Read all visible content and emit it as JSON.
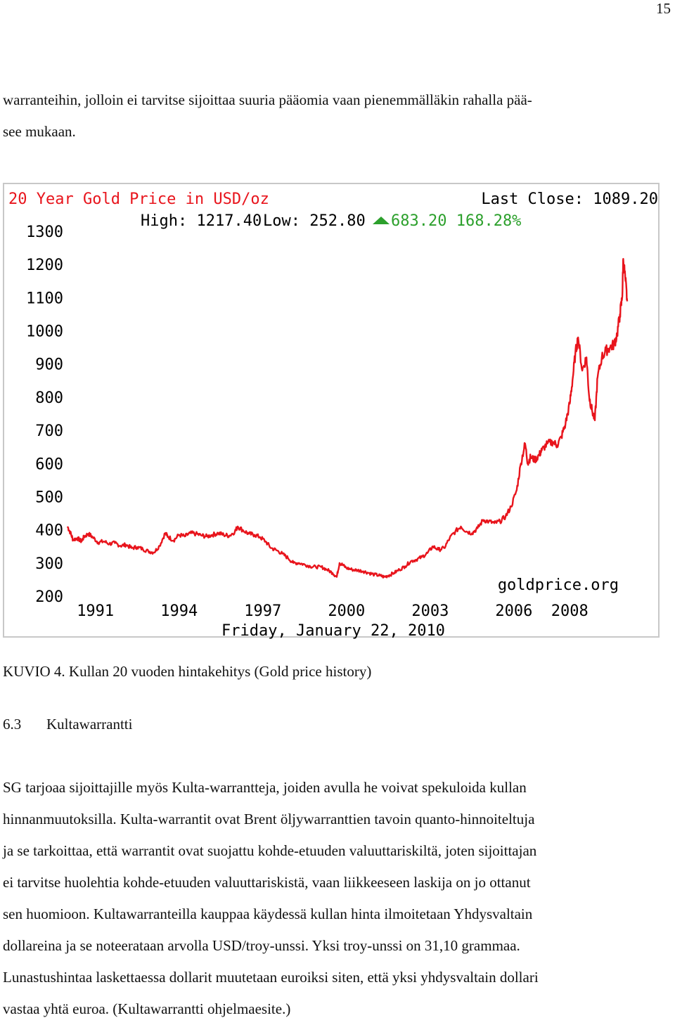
{
  "page_number": "15",
  "intro": {
    "line1": "warranteihin, jolloin ei tarvitse sijoittaa suuria pääomia vaan pienemmälläkin rahalla pää-",
    "line2": "see mukaan."
  },
  "caption": "KUVIO 4. Kullan 20 vuoden hintakehitys (Gold price history)",
  "section": {
    "number": "6.3",
    "title": "Kultawarrantti"
  },
  "body_lines": [
    "SG tarjoaa sijoittajille myös Kulta-warrantteja, joiden avulla he voivat spekuloida kullan",
    "hinnanmuutoksilla. Kulta-warrantit ovat Brent öljywarranttien tavoin quanto-hinnoiteltuja",
    "ja se tarkoittaa, että warrantit ovat suojattu kohde-etuuden valuuttariskiltä, joten sijoittajan",
    "ei tarvitse huolehtia kohde-etuuden valuuttariskistä, vaan liikkeeseen laskija on jo ottanut",
    "sen huomioon. Kultawarranteilla kauppaa käydessä kullan hinta ilmoitetaan Yhdysvaltain",
    "dollareina ja se noteerataan arvolla USD/troy-unssi. Yksi troy-unssi on 31,10 grammaa.",
    "Lunastushintaa laskettaessa dollarit muutetaan euroiksi siten, että yksi yhdysvaltain dollari",
    "vastaa yhtä euroa. (Kultawarrantti ohjelmaesite.)"
  ],
  "chart_data": {
    "type": "line",
    "title": "20 Year Gold Price in USD/oz",
    "last_close_label": "Last Close: 1089.20",
    "high_label": "High: 1217.40",
    "low_label": "Low: 252.80",
    "change_label": "683.20 168.28%",
    "date_label": "Friday, January 22, 2010",
    "source_label": "goldprice.org",
    "y_ticks": [
      "1300",
      "1200",
      "1100",
      "1000",
      "900",
      "800",
      "700",
      "600",
      "500",
      "400",
      "300",
      "200"
    ],
    "x_ticks": [
      {
        "label": "1991",
        "year": 1991.0
      },
      {
        "label": "1994",
        "year": 1994.0
      },
      {
        "label": "1997",
        "year": 1997.0
      },
      {
        "label": "2000",
        "year": 2000.0
      },
      {
        "label": "2003",
        "year": 2003.0
      },
      {
        "label": "2006",
        "year": 2006.0
      },
      {
        "label": "2008",
        "year": 2008.0
      }
    ],
    "ylim": [
      200,
      1300
    ],
    "xlim": [
      1990.0,
      2010.06
    ],
    "series_color": "#e8141c",
    "title_color": "#e8141c",
    "change_color": "#2ca02c",
    "series": [
      {
        "name": "Gold price",
        "x": [
          1990.0,
          1990.1,
          1990.2,
          1990.35,
          1990.5,
          1990.6,
          1990.75,
          1990.9,
          1991.1,
          1991.3,
          1991.5,
          1991.7,
          1991.9,
          1992.1,
          1992.3,
          1992.5,
          1992.7,
          1992.9,
          1993.1,
          1993.3,
          1993.5,
          1993.6,
          1993.8,
          1994.0,
          1994.2,
          1994.4,
          1994.6,
          1994.8,
          1995.0,
          1995.2,
          1995.4,
          1995.6,
          1995.8,
          1996.0,
          1996.1,
          1996.3,
          1996.5,
          1996.7,
          1996.9,
          1997.1,
          1997.3,
          1997.5,
          1997.7,
          1997.9,
          1998.1,
          1998.3,
          1998.5,
          1998.7,
          1998.9,
          1999.1,
          1999.3,
          1999.5,
          1999.65,
          1999.75,
          1999.85,
          2000.0,
          2000.2,
          2000.4,
          2000.6,
          2000.8,
          2001.0,
          2001.2,
          2001.35,
          2001.5,
          2001.7,
          2001.9,
          2002.1,
          2002.3,
          2002.5,
          2002.7,
          2002.9,
          2003.1,
          2003.3,
          2003.5,
          2003.7,
          2003.9,
          2004.1,
          2004.3,
          2004.5,
          2004.7,
          2004.9,
          2005.1,
          2005.3,
          2005.5,
          2005.7,
          2005.9,
          2006.1,
          2006.25,
          2006.4,
          2006.5,
          2006.6,
          2006.75,
          2006.9,
          2007.0,
          2007.2,
          2007.4,
          2007.55,
          2007.7,
          2007.85,
          2008.0,
          2008.1,
          2008.2,
          2008.3,
          2008.45,
          2008.6,
          2008.7,
          2008.8,
          2008.9,
          2009.0,
          2009.15,
          2009.3,
          2009.45,
          2009.6,
          2009.7,
          2009.8,
          2009.88,
          2009.92,
          2010.0,
          2010.06
        ],
        "values": [
          410,
          392,
          370,
          375,
          365,
          380,
          388,
          378,
          362,
          365,
          358,
          360,
          352,
          355,
          345,
          348,
          342,
          335,
          332,
          352,
          390,
          380,
          368,
          385,
          380,
          390,
          388,
          383,
          380,
          385,
          390,
          385,
          382,
          395,
          410,
          398,
          388,
          385,
          378,
          365,
          345,
          338,
          328,
          315,
          300,
          300,
          295,
          290,
          288,
          288,
          280,
          270,
          258,
          300,
          295,
          285,
          280,
          278,
          275,
          270,
          265,
          262,
          258,
          262,
          270,
          280,
          290,
          305,
          310,
          318,
          330,
          350,
          340,
          345,
          375,
          395,
          410,
          395,
          390,
          405,
          430,
          425,
          420,
          425,
          440,
          470,
          520,
          600,
          660,
          600,
          620,
          610,
          625,
          640,
          660,
          665,
          655,
          680,
          720,
          780,
          850,
          930,
          980,
          880,
          920,
          800,
          760,
          730,
          860,
          920,
          940,
          950,
          960,
          990,
          1050,
          1100,
          1217,
          1150,
          1089
        ]
      }
    ]
  }
}
